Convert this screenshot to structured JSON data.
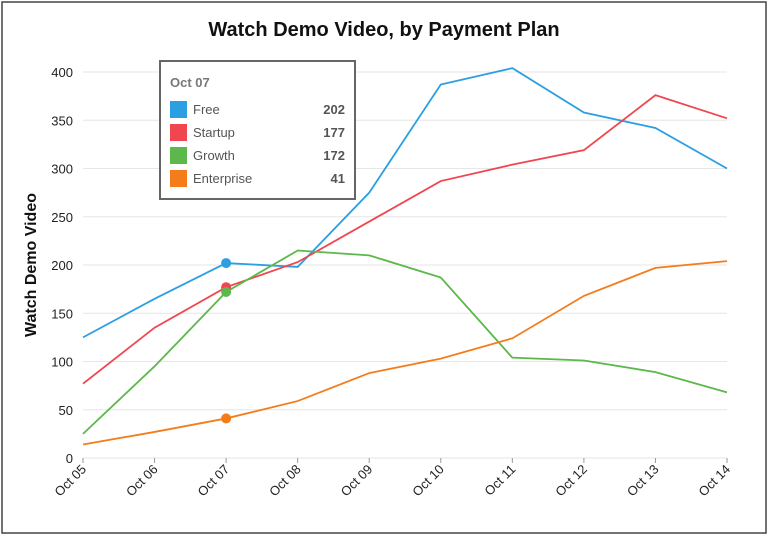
{
  "chart_data": {
    "type": "line",
    "title": "Watch Demo Video, by Payment Plan",
    "y_label": "Watch Demo Video",
    "categories": [
      "Oct 05",
      "Oct 06",
      "Oct 07",
      "Oct 08",
      "Oct 09",
      "Oct 10",
      "Oct 11",
      "Oct 12",
      "Oct 13",
      "Oct 14"
    ],
    "series": [
      {
        "name": "Free",
        "color": "#2b9fe2",
        "values": [
          125,
          165,
          202,
          198,
          275,
          387,
          404,
          358,
          342,
          300
        ]
      },
      {
        "name": "Startup",
        "color": "#f0464f",
        "values": [
          77,
          135,
          177,
          203,
          245,
          287,
          304,
          319,
          376,
          352
        ]
      },
      {
        "name": "Growth",
        "color": "#5cb84a",
        "values": [
          25,
          95,
          172,
          215,
          210,
          187,
          104,
          101,
          89,
          68
        ]
      },
      {
        "name": "Enterprise",
        "color": "#f57c1a",
        "values": [
          14,
          27,
          41,
          59,
          88,
          103,
          124,
          168,
          197,
          204
        ]
      }
    ],
    "ylim": [
      0,
      400
    ],
    "yticks": [
      0,
      50,
      100,
      150,
      200,
      250,
      300,
      350,
      400
    ],
    "grid": true
  }
}
